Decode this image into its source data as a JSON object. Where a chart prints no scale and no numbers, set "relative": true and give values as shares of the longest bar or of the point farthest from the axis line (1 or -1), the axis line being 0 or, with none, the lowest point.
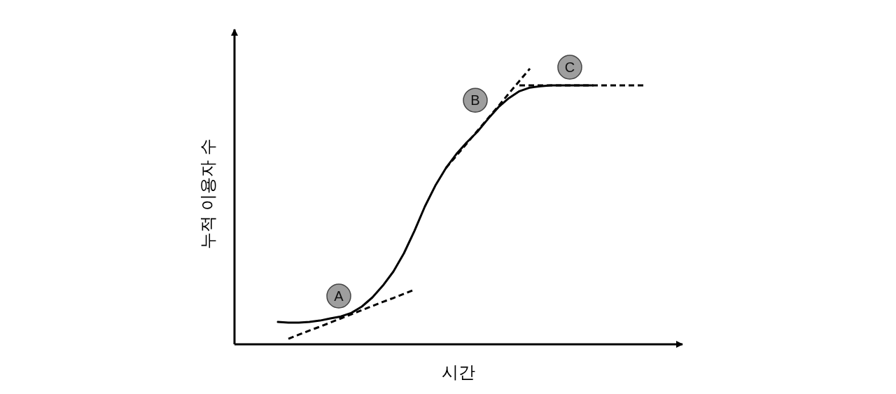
{
  "chart_data": {
    "type": "line",
    "xlabel": "시간",
    "ylabel": "누적 이용자 수",
    "relative": true,
    "categories": [
      null,
      null,
      null,
      null,
      null,
      null,
      null,
      null,
      null,
      null,
      null,
      null,
      null,
      null,
      null,
      null,
      null,
      null,
      null,
      null,
      null,
      null,
      null,
      null,
      null,
      null,
      null,
      null,
      null,
      null,
      null,
      null,
      null,
      null,
      null,
      null
    ],
    "series": [
      {
        "color": "#000000",
        "line_style": "solid",
        "values": [
          0.081,
          0.079,
          0.079,
          0.081,
          0.086,
          0.094,
          0.101,
          0.114,
          0.137,
          0.17,
          0.213,
          0.264,
          0.33,
          0.411,
          0.5,
          0.576,
          0.639,
          0.69,
          0.733,
          0.771,
          0.817,
          0.86,
          0.893,
          0.918,
          0.931,
          0.936,
          0.939,
          0.939,
          0.939,
          0.939,
          0.939,
          null,
          null,
          null,
          null,
          null
        ]
      },
      {
        "color": "#000000",
        "line_style": "dashed",
        "values": [
          null,
          0.02,
          0.035,
          0.05,
          0.064,
          0.079,
          0.094,
          0.109,
          0.124,
          0.139,
          0.154,
          0.168,
          0.183,
          0.198,
          null,
          null,
          null,
          null,
          null,
          null,
          null,
          null,
          null,
          null,
          null,
          null,
          null,
          null,
          null,
          null,
          null,
          null,
          null,
          null,
          null,
          null
        ]
      },
      {
        "color": "#000000",
        "line_style": "dashed",
        "values": [
          null,
          null,
          null,
          null,
          null,
          null,
          null,
          null,
          null,
          null,
          null,
          null,
          null,
          null,
          null,
          null,
          0.639,
          0.684,
          0.729,
          0.774,
          0.819,
          0.864,
          0.91,
          0.955,
          1.0,
          null,
          null,
          null,
          null,
          null,
          null,
          null,
          null,
          null,
          null,
          null
        ]
      },
      {
        "color": "#000000",
        "line_style": "dashed",
        "values": [
          null,
          null,
          null,
          null,
          null,
          null,
          null,
          null,
          null,
          null,
          null,
          null,
          null,
          null,
          null,
          null,
          null,
          null,
          null,
          null,
          null,
          null,
          null,
          0.939,
          0.939,
          0.939,
          0.939,
          0.939,
          0.939,
          0.939,
          0.939,
          0.939,
          0.939,
          0.939,
          0.939,
          0.939
        ]
      }
    ],
    "annotations": [
      "A",
      "B",
      "C"
    ]
  }
}
